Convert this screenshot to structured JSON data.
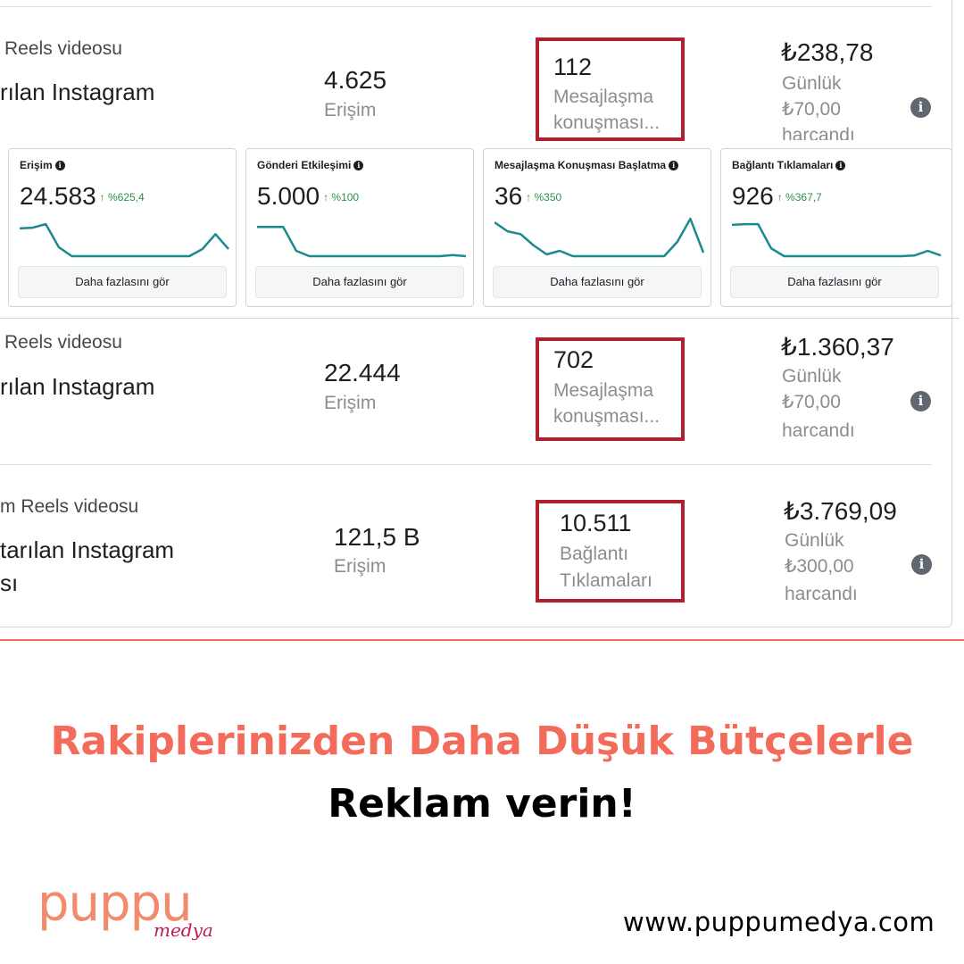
{
  "rows": [
    {
      "type": "Reels videosu",
      "source": "rılan Instagram",
      "source2": "",
      "reach_value": "4.625",
      "reach_label": "Erişim",
      "result_value": "112",
      "result_label_1": "Mesajlaşma",
      "result_label_2": "konuşması...",
      "cost_value": "₺238,78",
      "cost_line1": "Günlük",
      "cost_line2": "₺70,00",
      "cost_line3": "harcandı"
    },
    {
      "type": "Reels videosu",
      "source": "rılan Instagram",
      "source2": "",
      "reach_value": "22.444",
      "reach_label": "Erişim",
      "result_value": "702",
      "result_label_1": "Mesajlaşma",
      "result_label_2": "konuşması...",
      "cost_value": "₺1.360,37",
      "cost_line1": "Günlük",
      "cost_line2": "₺70,00",
      "cost_line3": "harcandı"
    },
    {
      "type": "m Reels videosu",
      "source": "tarılan Instagram",
      "source2": "sı",
      "reach_value": "121,5 B",
      "reach_label": "Erişim",
      "result_value": "10.511",
      "result_label_1": "Bağlantı",
      "result_label_2": "Tıklamaları",
      "cost_value": "₺3.769,09",
      "cost_line1": "Günlük",
      "cost_line2": "₺300,00",
      "cost_line3": "harcandı"
    }
  ],
  "info_icon": "i",
  "cards": [
    {
      "title": "Erişim",
      "value": "24.583",
      "change": "↑ %625,4",
      "button": "Daha fazlasını gör",
      "spark": [
        0.78,
        0.8,
        0.9,
        0.25,
        0,
        0,
        0,
        0,
        0,
        0,
        0,
        0,
        0,
        0,
        0.2,
        0.62,
        0.2
      ],
      "color": "#1b8a8f"
    },
    {
      "title": "Gönderi Etkileşimi",
      "value": "5.000",
      "change": "↑ %100",
      "button": "Daha fazlasını gör",
      "spark": [
        0.82,
        0.82,
        0.82,
        0.15,
        0,
        0,
        0,
        0,
        0,
        0,
        0,
        0,
        0,
        0,
        0,
        0.03,
        0
      ],
      "color": "#1b8a8f"
    },
    {
      "title": "Mesajlaşma Konuşması Başlatma",
      "value": "36",
      "change": "↑ %350",
      "button": "Daha fazlasını gör",
      "spark": [
        0.95,
        0.7,
        0.62,
        0.3,
        0.05,
        0.15,
        0,
        0,
        0,
        0,
        0,
        0,
        0,
        0,
        0.4,
        1.05,
        0.1
      ],
      "color": "#1b8a8f"
    },
    {
      "title": "Bağlantı Tıklamaları",
      "value": "926",
      "change": "↑ %367,7",
      "button": "Daha fazlasını gör",
      "spark": [
        0.88,
        0.9,
        0.9,
        0.22,
        0,
        0,
        0,
        0,
        0,
        0,
        0,
        0,
        0,
        0,
        0.02,
        0.15,
        0.02
      ],
      "color": "#1b8a8f"
    }
  ],
  "headline_1": "Rakiplerinizden Daha Düşük Bütçelerle",
  "headline_2": "Reklam verin!",
  "brand": {
    "name": "puppu",
    "sub": "medya",
    "website": "www.puppumedya.com"
  },
  "colors": {
    "accent": "#f26b5b",
    "highlight_border": "#b0202e",
    "spark": "#1b8a8f",
    "change_green": "#2d8f4e"
  }
}
